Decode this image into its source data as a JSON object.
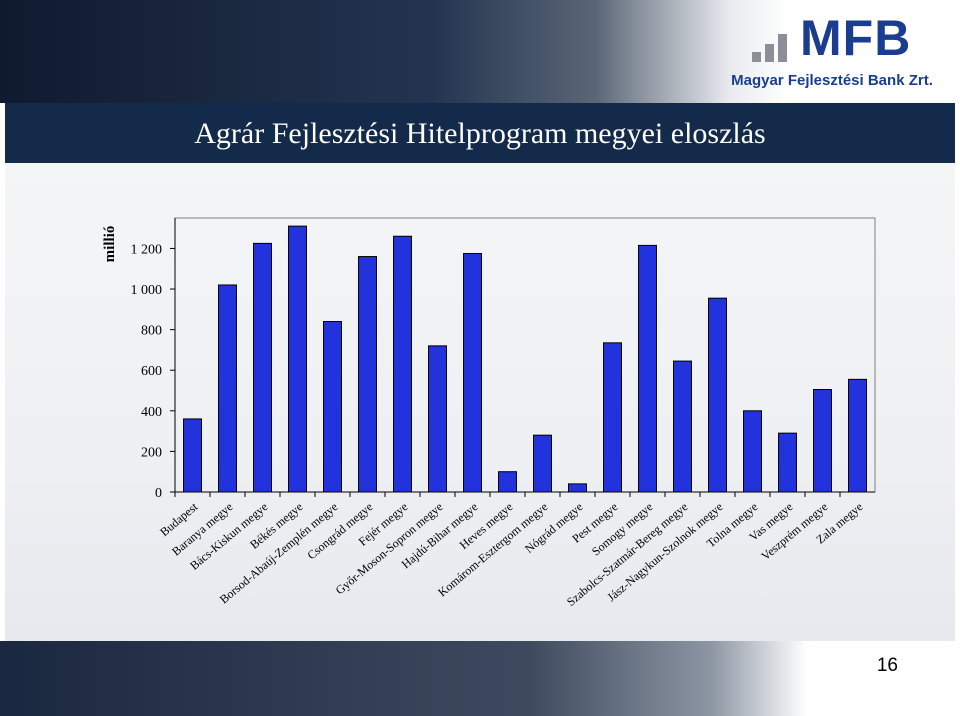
{
  "slide": {
    "title": "Agrár Fejlesztési Hitelprogram megyei eloszlás",
    "page_number": "16",
    "logo": {
      "mark": "MFB",
      "name": "Magyar Fejlesztési Bank Zrt.",
      "color": "#1a3d8f",
      "bar_color": "#8a8f98"
    }
  },
  "chart_data": {
    "type": "bar",
    "ylabel": "millió",
    "ylim": [
      0,
      1350
    ],
    "yticks": [
      0,
      200,
      400,
      600,
      800,
      1000,
      1200
    ],
    "ytick_labels": [
      "0",
      "200",
      "400",
      "600",
      "800",
      "1 000",
      "1 200"
    ],
    "bar_color": "#2233dd",
    "grid": false,
    "categories": [
      "Budapest",
      "Baranya megye",
      "Bács-Kiskun megye",
      "Békés megye",
      "Borsod-Abaúj-Zemplén megye",
      "Csongrád megye",
      "Fejér megye",
      "Győr-Moson-Sopron megye",
      "Hajdú-Bihar megye",
      "Heves megye",
      "Komárom-Esztergom megye",
      "Nógrád megye",
      "Pest megye",
      "Somogy megye",
      "Szabolcs-Szatmár-Bereg megye",
      "Jász-Nagykun-Szolnok megye",
      "Tolna megye",
      "Vas megye",
      "Veszprém megye",
      "Zala megye"
    ],
    "values": [
      360,
      1020,
      1225,
      1310,
      840,
      1160,
      1260,
      720,
      1175,
      100,
      280,
      40,
      735,
      1215,
      645,
      955,
      400,
      290,
      505,
      555
    ]
  }
}
